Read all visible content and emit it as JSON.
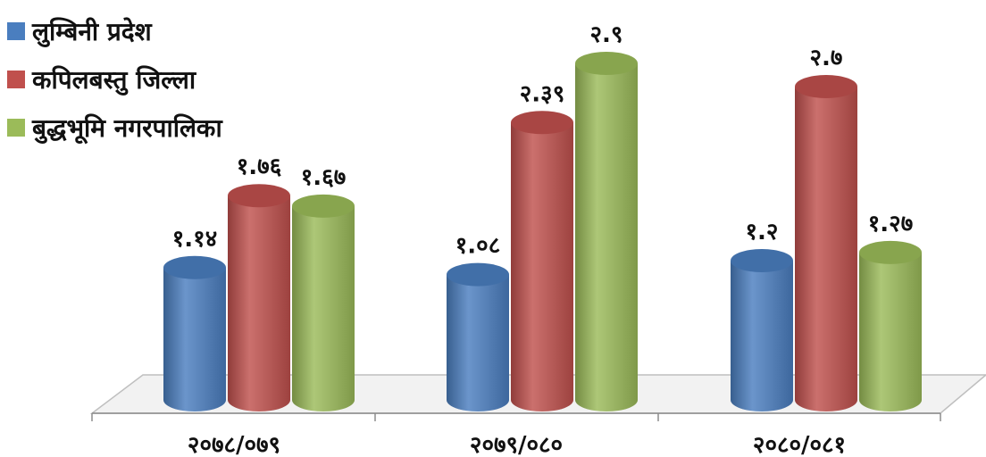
{
  "chart_data": {
    "type": "bar",
    "categories": [
      "२०७८/०७९",
      "२०७९/०८०",
      "२०८०/०८१"
    ],
    "series": [
      {
        "name": "लुम्बिनी प्रदेश",
        "values": [
          1.14,
          1.08,
          1.2
        ],
        "labels": [
          "१.१४",
          "१.०८",
          "१.२"
        ],
        "color": "#4a7ebf"
      },
      {
        "name": "कपिलबस्तु जिल्ला",
        "values": [
          1.76,
          2.39,
          2.7
        ],
        "labels": [
          "१.७६",
          "२.३९",
          "२.७"
        ],
        "color": "#c0504d"
      },
      {
        "name": "बुद्धभूमि नगरपालिका",
        "values": [
          1.67,
          2.9,
          1.27
        ],
        "labels": [
          "१.६७",
          "२.९",
          "१.२७"
        ],
        "color": "#9bbb59"
      }
    ],
    "legend_position": "top-left",
    "grid": false,
    "ylim": [
      0,
      3.2
    ]
  }
}
